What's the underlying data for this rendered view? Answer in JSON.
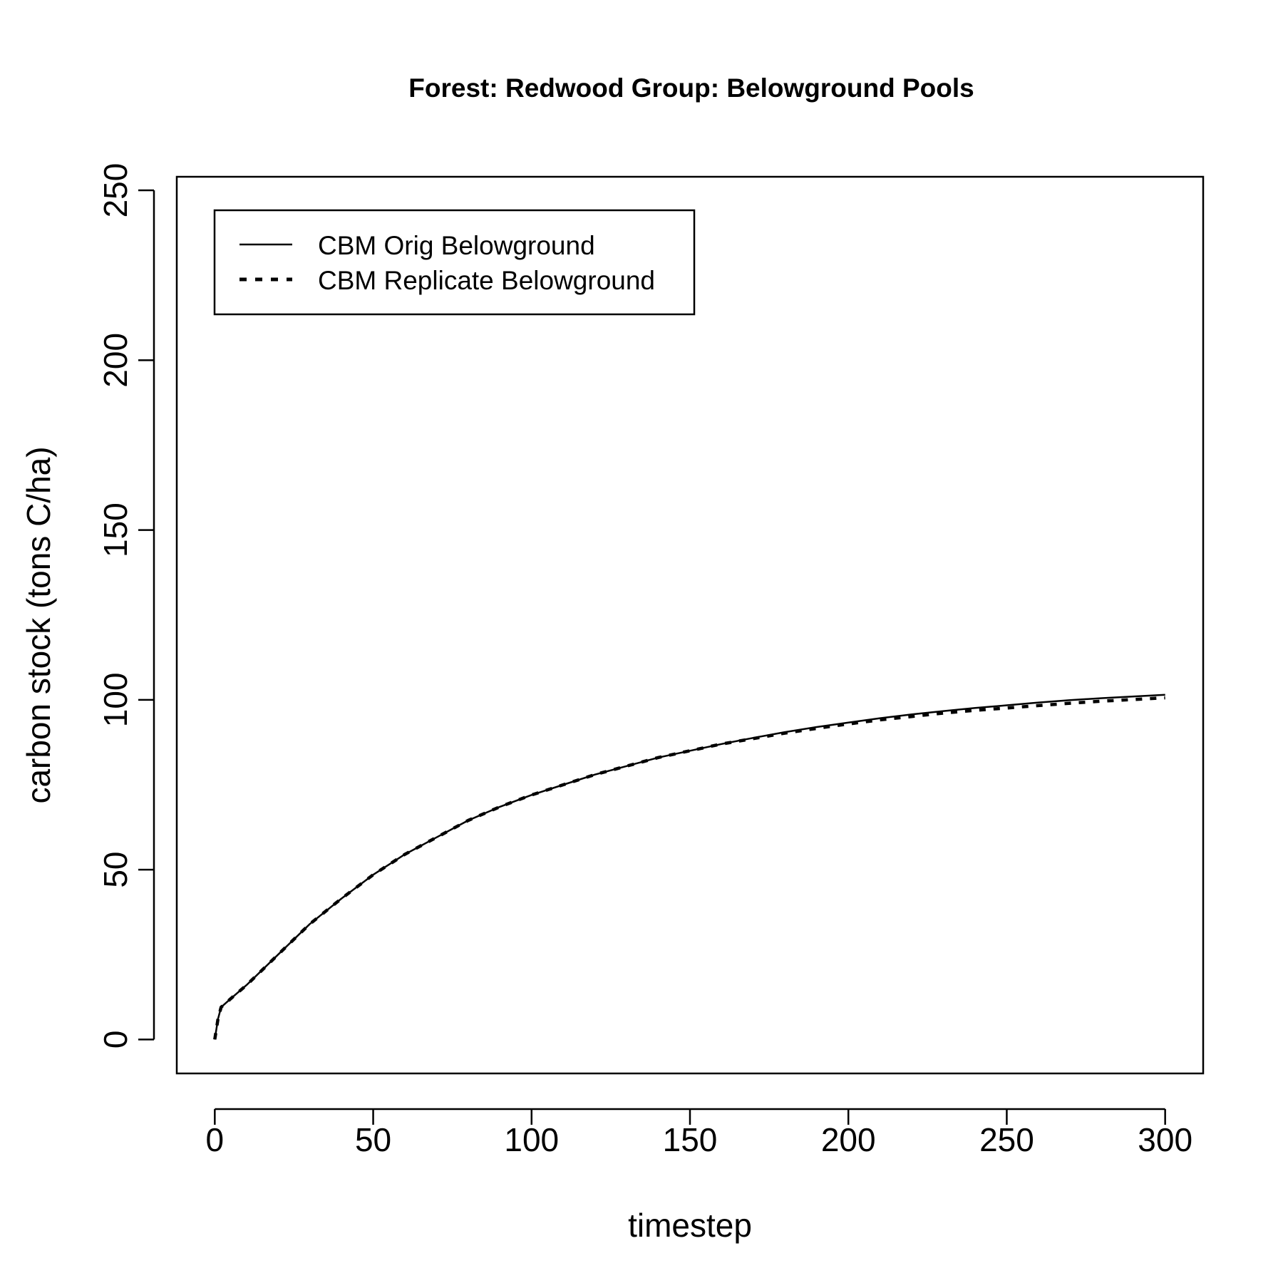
{
  "chart_data": {
    "type": "line",
    "title": "Forest: Redwood Group: Belowground Pools",
    "xlabel": "timestep",
    "ylabel": "carbon stock (tons C/ha)",
    "xlim": [
      -12,
      312
    ],
    "ylim": [
      -10,
      254
    ],
    "xticks": [
      0,
      50,
      100,
      150,
      200,
      250,
      300
    ],
    "yticks": [
      0,
      50,
      100,
      150,
      200,
      250
    ],
    "grid": false,
    "legend_position": "top-left",
    "series": [
      {
        "name": "CBM Orig Belowground",
        "line_style": "solid",
        "color": "#000000",
        "x": [
          0,
          1,
          2,
          5,
          10,
          15,
          20,
          25,
          30,
          40,
          50,
          60,
          70,
          80,
          90,
          100,
          110,
          120,
          130,
          140,
          150,
          160,
          170,
          180,
          190,
          200,
          210,
          220,
          230,
          240,
          250,
          260,
          270,
          280,
          290,
          300
        ],
        "y": [
          0,
          6,
          9.5,
          12,
          16,
          20.5,
          25,
          29.5,
          34,
          41.5,
          48.5,
          54.5,
          59.5,
          64.5,
          68.5,
          72,
          75,
          78,
          80.5,
          83,
          85,
          87,
          88.8,
          90.5,
          92,
          93.3,
          94.6,
          95.7,
          96.7,
          97.6,
          98.4,
          99.2,
          99.9,
          100.5,
          101,
          101.5
        ]
      },
      {
        "name": "CBM Replicate Belowground",
        "line_style": "dashed",
        "color": "#000000",
        "x": [
          0,
          1,
          2,
          5,
          10,
          15,
          20,
          25,
          30,
          40,
          50,
          60,
          70,
          80,
          90,
          100,
          110,
          120,
          130,
          140,
          150,
          160,
          170,
          180,
          190,
          200,
          210,
          220,
          230,
          240,
          250,
          260,
          270,
          280,
          290,
          300
        ],
        "y": [
          0,
          6,
          9.5,
          12,
          16,
          20.5,
          25,
          29.5,
          34,
          41.5,
          48.5,
          54.5,
          59.5,
          64.5,
          68.5,
          72,
          75,
          78,
          80.5,
          83,
          85,
          87,
          88.6,
          90.2,
          91.6,
          92.9,
          94.1,
          95.1,
          96.1,
          96.9,
          97.6,
          98.3,
          99,
          99.6,
          100.1,
          100.6
        ]
      }
    ]
  }
}
